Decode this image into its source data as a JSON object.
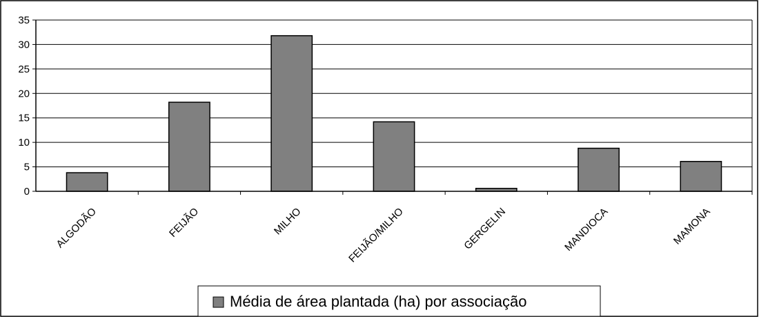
{
  "chart_data": {
    "type": "bar",
    "categories": [
      "ALGODÃO",
      "FEIJÃO",
      "MILHO",
      "FEIJÃO/MILHO",
      "GERGELIN",
      "MANDIOCA",
      "MAMONA"
    ],
    "series": [
      {
        "name": "Média de área plantada (ha) por associação",
        "values": [
          3.8,
          18.2,
          31.8,
          14.2,
          0.6,
          8.8,
          6.1
        ]
      }
    ],
    "yticks": [
      "0",
      "5",
      "10",
      "15",
      "20",
      "25",
      "30",
      "35"
    ],
    "ylim": [
      0,
      35
    ],
    "grid": true,
    "legend_position": "bottom",
    "colors": {
      "bar": "#808080",
      "bar_stroke": "#000000",
      "grid": "#000000"
    }
  }
}
